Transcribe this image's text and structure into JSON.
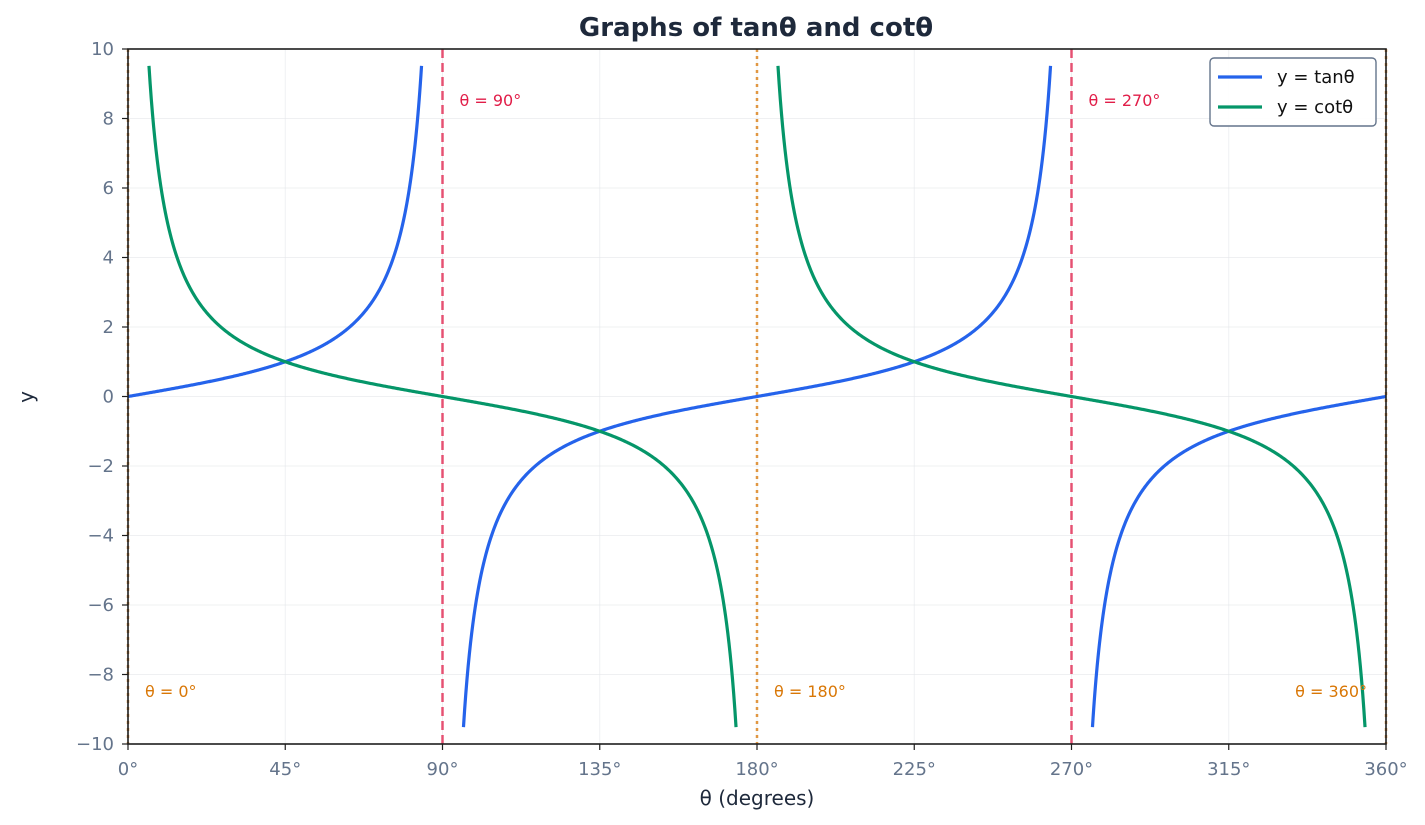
{
  "chart_data": {
    "type": "line",
    "title": "Graphs of tanθ and cotθ",
    "xlabel": "θ (degrees)",
    "ylabel": "y",
    "xlim": [
      0,
      360
    ],
    "ylim": [
      -10,
      10
    ],
    "x_ticks": [
      0,
      45,
      90,
      135,
      180,
      225,
      270,
      315,
      360
    ],
    "x_tick_labels": [
      "0°",
      "45°",
      "90°",
      "135°",
      "180°",
      "225°",
      "270°",
      "315°",
      "360°"
    ],
    "y_ticks": [
      -10,
      -8,
      -6,
      -4,
      -2,
      0,
      2,
      4,
      6,
      8,
      10
    ],
    "y_tick_labels": [
      "−10",
      "−8",
      "−6",
      "−4",
      "−2",
      "0",
      "2",
      "4",
      "6",
      "8",
      "10"
    ],
    "grid": true,
    "legend_position": "top-right",
    "series": [
      {
        "name": "y = tanθ",
        "function": "tan",
        "color": "#2563eb",
        "segments": [
          [
            0,
            84
          ],
          [
            96,
            264
          ],
          [
            276,
            360
          ]
        ],
        "sample_points": [
          [
            0,
            0
          ],
          [
            45,
            1
          ],
          [
            84,
            9.51
          ],
          [
            96,
            -9.51
          ],
          [
            135,
            -1
          ],
          [
            180,
            0
          ],
          [
            225,
            1
          ],
          [
            264,
            9.51
          ],
          [
            276,
            -9.51
          ],
          [
            315,
            -1
          ],
          [
            360,
            0
          ]
        ]
      },
      {
        "name": "y = cotθ",
        "function": "cot",
        "color": "#059669",
        "segments": [
          [
            6,
            174
          ],
          [
            186,
            354
          ]
        ],
        "sample_points": [
          [
            6,
            9.51
          ],
          [
            45,
            1
          ],
          [
            90,
            0
          ],
          [
            135,
            -1
          ],
          [
            174,
            -9.51
          ],
          [
            186,
            9.51
          ],
          [
            225,
            1
          ],
          [
            270,
            0
          ],
          [
            315,
            -1
          ],
          [
            354,
            -9.51
          ]
        ]
      }
    ],
    "vertical_lines": [
      {
        "x": 90,
        "style": "dashed",
        "color": "#e11d48",
        "label": "θ = 90°",
        "label_pos": "top"
      },
      {
        "x": 270,
        "style": "dashed",
        "color": "#e11d48",
        "label": "θ = 270°",
        "label_pos": "top"
      },
      {
        "x": 0,
        "style": "dotted",
        "color": "#d97706",
        "label": "θ = 0°",
        "label_pos": "bottom"
      },
      {
        "x": 180,
        "style": "dotted",
        "color": "#d97706",
        "label": "θ = 180°",
        "label_pos": "bottom"
      },
      {
        "x": 360,
        "style": "dotted",
        "color": "#d97706",
        "label": "θ = 360°",
        "label_pos": "bottom-left"
      }
    ]
  }
}
